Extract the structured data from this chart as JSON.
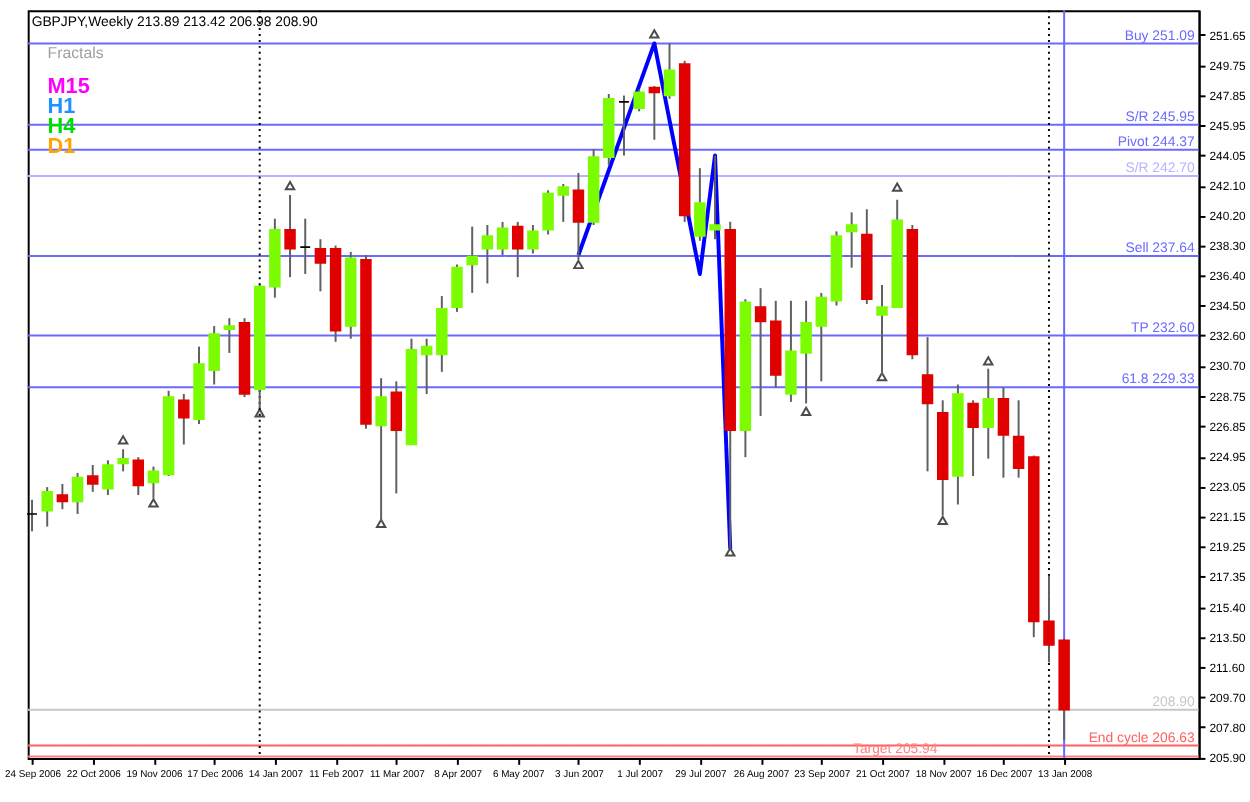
{
  "chart_data": {
    "type": "candlestick",
    "title": "GBPJPY,Weekly  213.89 213.42 206.98 208.90",
    "legend_title": "Fractals",
    "grid": false,
    "x": [
      "2006-09-24",
      "2006-10-01",
      "2006-10-08",
      "2006-10-15",
      "2006-10-22",
      "2006-10-29",
      "2006-11-05",
      "2006-11-12",
      "2006-11-19",
      "2006-11-26",
      "2006-12-03",
      "2006-12-10",
      "2006-12-17",
      "2006-12-24",
      "2006-12-31",
      "2007-01-07",
      "2007-01-14",
      "2007-01-21",
      "2007-01-28",
      "2007-02-04",
      "2007-02-11",
      "2007-02-18",
      "2007-02-25",
      "2007-03-04",
      "2007-03-11",
      "2007-03-18",
      "2007-03-25",
      "2007-04-01",
      "2007-04-08",
      "2007-04-15",
      "2007-04-22",
      "2007-04-29",
      "2007-05-06",
      "2007-05-13",
      "2007-05-20",
      "2007-05-27",
      "2007-06-03",
      "2007-06-10",
      "2007-06-17",
      "2007-06-24",
      "2007-07-01",
      "2007-07-08",
      "2007-07-15",
      "2007-07-22",
      "2007-07-29",
      "2007-08-05",
      "2007-08-12",
      "2007-08-19",
      "2007-08-26",
      "2007-09-02",
      "2007-09-09",
      "2007-09-16",
      "2007-09-23",
      "2007-09-30",
      "2007-10-07",
      "2007-10-14",
      "2007-10-21",
      "2007-10-28",
      "2007-11-04",
      "2007-11-11",
      "2007-11-18",
      "2007-11-25",
      "2007-12-02",
      "2007-12-09",
      "2007-12-16",
      "2007-12-23",
      "2007-12-30",
      "2008-01-06",
      "2008-01-13"
    ],
    "ohlc": [
      [
        221.3,
        222.2,
        220.2,
        221.3
      ],
      [
        221.5,
        223.0,
        220.5,
        222.7
      ],
      [
        222.5,
        223.2,
        221.6,
        222.1
      ],
      [
        222.1,
        223.9,
        221.3,
        223.6
      ],
      [
        223.7,
        224.4,
        222.7,
        223.2
      ],
      [
        222.9,
        224.7,
        222.5,
        224.4
      ],
      [
        224.5,
        225.4,
        224.0,
        224.8
      ],
      [
        224.7,
        224.9,
        222.5,
        223.1
      ],
      [
        223.3,
        224.3,
        222.3,
        224.0
      ],
      [
        223.8,
        229.1,
        223.7,
        228.7
      ],
      [
        228.5,
        228.9,
        225.7,
        227.4
      ],
      [
        227.3,
        231.9,
        227.0,
        230.8
      ],
      [
        230.4,
        233.2,
        229.5,
        232.7
      ],
      [
        233.0,
        233.7,
        231.5,
        233.2
      ],
      [
        233.4,
        233.7,
        228.7,
        228.9
      ],
      [
        229.2,
        235.8,
        228.0,
        235.7
      ],
      [
        235.7,
        240.0,
        235.0,
        239.3
      ],
      [
        239.3,
        241.5,
        236.3,
        238.1
      ],
      [
        238.2,
        240.0,
        236.5,
        238.2
      ],
      [
        238.1,
        238.7,
        235.4,
        237.2
      ],
      [
        238.1,
        238.3,
        232.2,
        232.9
      ],
      [
        233.2,
        237.9,
        232.4,
        237.5
      ],
      [
        237.4,
        237.7,
        226.7,
        227.0
      ],
      [
        226.9,
        229.9,
        220.8,
        228.7
      ],
      [
        229.0,
        229.7,
        222.6,
        226.6
      ],
      [
        225.7,
        232.4,
        225.7,
        231.7
      ],
      [
        231.4,
        232.4,
        228.9,
        231.9
      ],
      [
        231.4,
        235.1,
        230.3,
        234.3
      ],
      [
        234.4,
        237.1,
        234.1,
        236.9
      ],
      [
        237.1,
        239.5,
        235.3,
        237.6
      ],
      [
        238.1,
        239.6,
        235.9,
        238.9
      ],
      [
        238.1,
        239.8,
        237.7,
        239.4
      ],
      [
        239.5,
        239.8,
        236.3,
        238.1
      ],
      [
        238.1,
        239.6,
        237.8,
        239.2
      ],
      [
        239.3,
        241.8,
        239.0,
        241.6
      ],
      [
        241.5,
        242.2,
        239.8,
        242.0
      ],
      [
        241.8,
        242.9,
        237.4,
        239.8
      ],
      [
        239.8,
        244.4,
        239.6,
        243.9
      ],
      [
        243.9,
        247.9,
        243.4,
        247.6
      ],
      [
        247.4,
        247.8,
        244.0,
        247.4
      ],
      [
        247.0,
        248.2,
        246.8,
        248.0
      ],
      [
        248.3,
        248.4,
        245.0,
        248.0
      ],
      [
        247.8,
        251.1,
        247.6,
        249.4
      ],
      [
        249.8,
        250.0,
        239.8,
        240.2
      ],
      [
        238.9,
        243.2,
        238.6,
        241.0
      ],
      [
        239.3,
        244.0,
        238.7,
        239.6
      ],
      [
        239.3,
        239.8,
        219.1,
        226.6
      ],
      [
        226.6,
        234.9,
        224.9,
        234.7
      ],
      [
        234.4,
        235.6,
        227.5,
        233.5
      ],
      [
        233.5,
        234.8,
        229.3,
        230.1
      ],
      [
        228.9,
        234.8,
        228.4,
        231.6
      ],
      [
        231.5,
        234.8,
        228.3,
        233.4
      ],
      [
        233.2,
        235.3,
        229.7,
        235.0
      ],
      [
        234.8,
        239.2,
        234.5,
        238.9
      ],
      [
        239.2,
        240.4,
        236.9,
        239.6
      ],
      [
        239.0,
        240.6,
        234.6,
        234.9
      ],
      [
        233.9,
        235.8,
        230.1,
        234.4
      ],
      [
        234.4,
        241.2,
        234.4,
        239.9
      ],
      [
        239.3,
        239.6,
        231.1,
        231.4
      ],
      [
        230.1,
        232.5,
        224.0,
        228.3
      ],
      [
        227.7,
        228.5,
        221.2,
        223.5
      ],
      [
        223.7,
        229.5,
        221.9,
        228.9
      ],
      [
        228.3,
        228.5,
        223.7,
        226.8
      ],
      [
        226.8,
        230.5,
        224.8,
        228.6
      ],
      [
        228.6,
        229.3,
        223.6,
        226.3
      ],
      [
        226.2,
        228.5,
        223.6,
        224.2
      ],
      [
        224.9,
        225.0,
        213.5,
        214.5
      ],
      [
        214.5,
        217.4,
        211.9,
        213.0
      ],
      [
        213.3,
        213.4,
        207.0,
        208.9
      ]
    ],
    "colors": [
      "#000000",
      "#7cfc00",
      "#e00000",
      "#7cfc00",
      "#e00000",
      "#7cfc00",
      "#7cfc00",
      "#e00000",
      "#7cfc00",
      "#7cfc00",
      "#e00000",
      "#7cfc00",
      "#7cfc00",
      "#7cfc00",
      "#e00000",
      "#7cfc00",
      "#7cfc00",
      "#e00000",
      "#000000",
      "#e00000",
      "#e00000",
      "#7cfc00",
      "#e00000",
      "#7cfc00",
      "#e00000",
      "#7cfc00",
      "#7cfc00",
      "#7cfc00",
      "#7cfc00",
      "#7cfc00",
      "#7cfc00",
      "#7cfc00",
      "#e00000",
      "#7cfc00",
      "#7cfc00",
      "#7cfc00",
      "#e00000",
      "#7cfc00",
      "#7cfc00",
      "#000000",
      "#7cfc00",
      "#e00000",
      "#7cfc00",
      "#e00000",
      "#7cfc00",
      "#7cfc00",
      "#e00000",
      "#7cfc00",
      "#e00000",
      "#e00000",
      "#7cfc00",
      "#7cfc00",
      "#7cfc00",
      "#7cfc00",
      "#7cfc00",
      "#e00000",
      "#7cfc00",
      "#7cfc00",
      "#e00000",
      "#e00000",
      "#e00000",
      "#7cfc00",
      "#e00000",
      "#7cfc00",
      "#e00000",
      "#e00000",
      "#e00000",
      "#e00000",
      "#e00000"
    ],
    "series": [
      {
        "type": "line",
        "color": "#0000ff",
        "x": [
          "2007-06-03",
          "2007-07-08",
          "2007-07-29",
          "2007-08-05",
          "2007-08-12"
        ],
        "values": [
          237.7,
          251.1,
          236.5,
          244.0,
          219.1
        ]
      },
      {
        "type": "scatter",
        "marker": "triangle",
        "color": "#000000",
        "x": [
          "2006-11-05",
          "2007-01-21",
          "2007-07-08",
          "2007-10-28",
          "2007-12-09"
        ],
        "values": [
          226.0,
          242.1,
          251.7,
          242.0,
          231.0
        ]
      },
      {
        "type": "scatter",
        "marker": "triangle",
        "color": "#000000",
        "x": [
          "2006-11-19",
          "2007-01-07",
          "2007-03-04",
          "2007-06-03",
          "2007-08-12",
          "2007-09-16",
          "2007-10-21",
          "2007-11-18"
        ],
        "values": [
          222.0,
          227.7,
          220.7,
          237.1,
          218.9,
          227.8,
          230.0,
          220.9
        ]
      }
    ],
    "annotations": [
      "M15",
      "H1",
      "H4",
      "D1"
    ],
    "ref_lines": [
      {
        "axis": "y",
        "value": 251.09,
        "label": "Buy 251.09",
        "color": "#6a6aff"
      },
      {
        "axis": "y",
        "value": 245.95,
        "label": "S/R 245.95",
        "color": "#6a6aff"
      },
      {
        "axis": "y",
        "value": 244.37,
        "label": "Pivot 244.37",
        "color": "#6a6aff"
      },
      {
        "axis": "y",
        "value": 242.7,
        "label": "S/R 242.70",
        "color": "#b4b4ff"
      },
      {
        "axis": "y",
        "value": 237.64,
        "label": "Sell 237.64",
        "color": "#6a6aff"
      },
      {
        "axis": "y",
        "value": 232.6,
        "label": "TP 232.60",
        "color": "#6a6aff"
      },
      {
        "axis": "y",
        "value": 229.33,
        "label": "61.8 229.33",
        "color": "#6a6aff"
      },
      {
        "axis": "y",
        "value": 208.9,
        "label": "208.90",
        "color": "#c8c8c8"
      },
      {
        "axis": "y",
        "value": 206.63,
        "label": "End cycle 206.63",
        "color": "#ff6060"
      },
      {
        "axis": "y",
        "value": 205.94,
        "label": "Target 205.94",
        "color": "#ff8080"
      },
      {
        "axis": "x",
        "value": "2007-01-07",
        "color": "#000000",
        "line_style": "dotted"
      },
      {
        "axis": "x",
        "value": "2008-01-06",
        "color": "#000000",
        "line_style": "dotted"
      },
      {
        "axis": "x",
        "value": "2008-01-13",
        "color": "#6a6aff"
      }
    ],
    "xlim": [
      "2006-09-22",
      "2008-03-15"
    ],
    "xticks": [
      {
        "value": "2006-09-24",
        "label": "24 Sep 2006"
      },
      {
        "value": "2006-10-22",
        "label": "22 Oct 2006"
      },
      {
        "value": "2006-11-19",
        "label": "19 Nov 2006"
      },
      {
        "value": "2006-12-17",
        "label": "17 Dec 2006"
      },
      {
        "value": "2007-01-14",
        "label": "14 Jan 2007"
      },
      {
        "value": "2007-02-11",
        "label": "11 Feb 2007"
      },
      {
        "value": "2007-03-11",
        "label": "11 Mar 2007"
      },
      {
        "value": "2007-04-08",
        "label": "8 Apr 2007"
      },
      {
        "value": "2007-05-06",
        "label": "6 May 2007"
      },
      {
        "value": "2007-06-03",
        "label": "3 Jun 2007"
      },
      {
        "value": "2007-07-01",
        "label": "1 Jul 2007"
      },
      {
        "value": "2007-07-29",
        "label": "29 Jul 2007"
      },
      {
        "value": "2007-08-26",
        "label": "26 Aug 2007"
      },
      {
        "value": "2007-09-23",
        "label": "23 Sep 2007"
      },
      {
        "value": "2007-10-21",
        "label": "21 Oct 2007"
      },
      {
        "value": "2007-11-18",
        "label": "18 Nov 2007"
      },
      {
        "value": "2007-12-16",
        "label": "16 Dec 2007"
      },
      {
        "value": "2008-01-13",
        "label": "13 Jan 2008"
      }
    ],
    "ylim": [
      205.85,
      253.2
    ],
    "yticks": [
      {
        "value": 205.9,
        "label": "205.90"
      },
      {
        "value": 207.8,
        "label": "207.80"
      },
      {
        "value": 209.7,
        "label": "209.70"
      },
      {
        "value": 211.6,
        "label": "211.60"
      },
      {
        "value": 213.5,
        "label": "213.50"
      },
      {
        "value": 215.4,
        "label": "215.40"
      },
      {
        "value": 217.35,
        "label": "217.35"
      },
      {
        "value": 219.25,
        "label": "219.25"
      },
      {
        "value": 221.15,
        "label": "221.15"
      },
      {
        "value": 223.05,
        "label": "223.05"
      },
      {
        "value": 224.95,
        "label": "224.95"
      },
      {
        "value": 226.85,
        "label": "226.85"
      },
      {
        "value": 228.75,
        "label": "228.75"
      },
      {
        "value": 230.7,
        "label": "230.70"
      },
      {
        "value": 232.6,
        "label": "232.60"
      },
      {
        "value": 234.5,
        "label": "234.50"
      },
      {
        "value": 236.4,
        "label": "236.40"
      },
      {
        "value": 238.3,
        "label": "238.30"
      },
      {
        "value": 240.2,
        "label": "240.20"
      },
      {
        "value": 242.1,
        "label": "242.10"
      },
      {
        "value": 244.05,
        "label": "244.05"
      },
      {
        "value": 245.95,
        "label": "245.95"
      },
      {
        "value": 247.85,
        "label": "247.85"
      },
      {
        "value": 249.75,
        "label": "249.75"
      },
      {
        "value": 251.65,
        "label": "251.65"
      }
    ]
  }
}
